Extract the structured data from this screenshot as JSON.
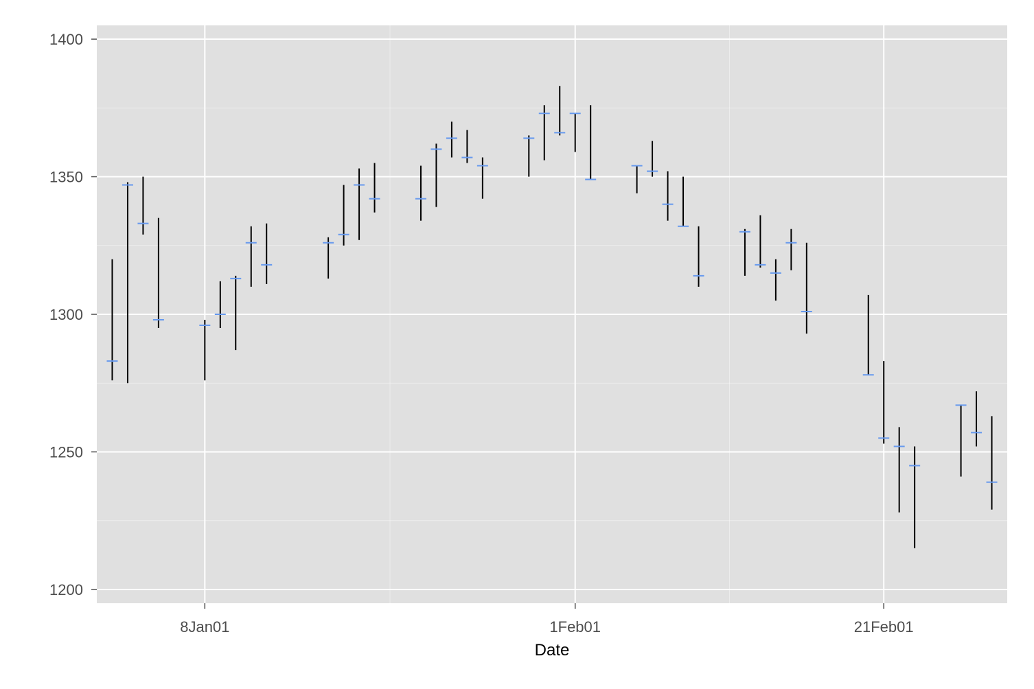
{
  "chart_data": {
    "type": "hilo",
    "xlabel": "Date",
    "ylabel": "",
    "x_range": [
      "2001-01-02",
      "2001-02-28"
    ],
    "ylim": [
      1195,
      1405
    ],
    "y_ticks": [
      1200,
      1250,
      1300,
      1350,
      1400
    ],
    "x_ticks": [
      {
        "date": "2001-01-08",
        "label": "8Jan01"
      },
      {
        "date": "2001-02-01",
        "label": "1Feb01"
      },
      {
        "date": "2001-02-21",
        "label": "21Feb01"
      }
    ],
    "grid": true,
    "colors": {
      "panel_background": "#e0e0e0",
      "grid_line": "#ffffff",
      "range_line": "#000000",
      "close_tick": "#6699ee",
      "axis_tick": "#4d4d4d"
    },
    "points": [
      {
        "date": "2001-01-02",
        "low": 1276,
        "high": 1320,
        "close": 1283
      },
      {
        "date": "2001-01-03",
        "low": 1275,
        "high": 1348,
        "close": 1347
      },
      {
        "date": "2001-01-04",
        "low": 1329,
        "high": 1350,
        "close": 1333
      },
      {
        "date": "2001-01-05",
        "low": 1295,
        "high": 1335,
        "close": 1298
      },
      {
        "date": "2001-01-08",
        "low": 1276,
        "high": 1298,
        "close": 1296
      },
      {
        "date": "2001-01-09",
        "low": 1295,
        "high": 1312,
        "close": 1300
      },
      {
        "date": "2001-01-10",
        "low": 1287,
        "high": 1314,
        "close": 1313
      },
      {
        "date": "2001-01-11",
        "low": 1310,
        "high": 1332,
        "close": 1326
      },
      {
        "date": "2001-01-12",
        "low": 1311,
        "high": 1333,
        "close": 1318
      },
      {
        "date": "2001-01-16",
        "low": 1313,
        "high": 1328,
        "close": 1326
      },
      {
        "date": "2001-01-17",
        "low": 1325,
        "high": 1347,
        "close": 1329
      },
      {
        "date": "2001-01-18",
        "low": 1327,
        "high": 1353,
        "close": 1347
      },
      {
        "date": "2001-01-19",
        "low": 1337,
        "high": 1355,
        "close": 1342
      },
      {
        "date": "2001-01-22",
        "low": 1334,
        "high": 1354,
        "close": 1342
      },
      {
        "date": "2001-01-23",
        "low": 1339,
        "high": 1362,
        "close": 1360
      },
      {
        "date": "2001-01-24",
        "low": 1357,
        "high": 1370,
        "close": 1364
      },
      {
        "date": "2001-01-25",
        "low": 1355,
        "high": 1367,
        "close": 1357
      },
      {
        "date": "2001-01-26",
        "low": 1342,
        "high": 1357,
        "close": 1354
      },
      {
        "date": "2001-01-29",
        "low": 1350,
        "high": 1365,
        "close": 1364
      },
      {
        "date": "2001-01-30",
        "low": 1356,
        "high": 1376,
        "close": 1373
      },
      {
        "date": "2001-01-31",
        "low": 1365,
        "high": 1383,
        "close": 1366
      },
      {
        "date": "2001-02-01",
        "low": 1359,
        "high": 1373,
        "close": 1373
      },
      {
        "date": "2001-02-02",
        "low": 1349,
        "high": 1376,
        "close": 1349
      },
      {
        "date": "2001-02-05",
        "low": 1344,
        "high": 1354,
        "close": 1354
      },
      {
        "date": "2001-02-06",
        "low": 1350,
        "high": 1363,
        "close": 1352
      },
      {
        "date": "2001-02-07",
        "low": 1334,
        "high": 1352,
        "close": 1340
      },
      {
        "date": "2001-02-08",
        "low": 1332,
        "high": 1350,
        "close": 1332
      },
      {
        "date": "2001-02-09",
        "low": 1310,
        "high": 1332,
        "close": 1314
      },
      {
        "date": "2001-02-12",
        "low": 1314,
        "high": 1331,
        "close": 1330
      },
      {
        "date": "2001-02-13",
        "low": 1317,
        "high": 1336,
        "close": 1318
      },
      {
        "date": "2001-02-14",
        "low": 1305,
        "high": 1320,
        "close": 1315
      },
      {
        "date": "2001-02-15",
        "low": 1316,
        "high": 1331,
        "close": 1326
      },
      {
        "date": "2001-02-16",
        "low": 1293,
        "high": 1326,
        "close": 1301
      },
      {
        "date": "2001-02-20",
        "low": 1278,
        "high": 1307,
        "close": 1278
      },
      {
        "date": "2001-02-21",
        "low": 1253,
        "high": 1283,
        "close": 1255
      },
      {
        "date": "2001-02-22",
        "low": 1228,
        "high": 1259,
        "close": 1252
      },
      {
        "date": "2001-02-23",
        "low": 1215,
        "high": 1252,
        "close": 1245
      },
      {
        "date": "2001-02-26",
        "low": 1241,
        "high": 1267,
        "close": 1267
      },
      {
        "date": "2001-02-27",
        "low": 1252,
        "high": 1272,
        "close": 1257
      },
      {
        "date": "2001-02-28",
        "low": 1229,
        "high": 1263,
        "close": 1239
      }
    ]
  }
}
